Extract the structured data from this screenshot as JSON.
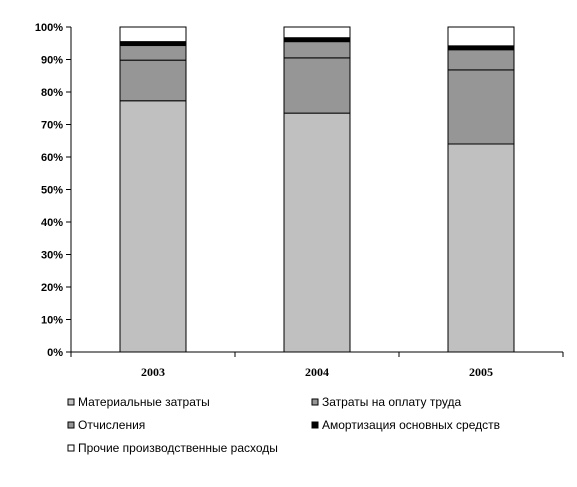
{
  "chart_data": {
    "type": "bar",
    "stacked": true,
    "percent_stacked": true,
    "categories": [
      "2003",
      "2004",
      "2005"
    ],
    "series": [
      {
        "name": "Материальные затраты",
        "color": "#c0c0c0",
        "values": [
          77.3,
          73.5,
          64.0
        ]
      },
      {
        "name": "Отчисления",
        "color": "#969696",
        "values": [
          12.5,
          17.0,
          22.8
        ]
      },
      {
        "name": "Затраты на оплату труда",
        "color": "#969696",
        "values": [
          4.5,
          5.0,
          6.2
        ]
      },
      {
        "name": "Амортизация основных средств",
        "color": "#000000",
        "values": [
          1.2,
          1.2,
          1.2
        ]
      },
      {
        "name": "Прочие производственные расходы",
        "color": "#ffffff",
        "values": [
          4.5,
          3.3,
          5.8
        ]
      }
    ],
    "ylim": [
      0,
      100
    ],
    "ytick_labels": [
      "0%",
      "10%",
      "20%",
      "30%",
      "40%",
      "50%",
      "60%",
      "70%",
      "80%",
      "90%",
      "100%"
    ],
    "ytick_values": [
      0,
      10,
      20,
      30,
      40,
      50,
      60,
      70,
      80,
      90,
      100
    ],
    "grid": false,
    "legend_position": "bottom",
    "legend_order": [
      "Материальные затраты",
      "Затраты на оплату труда",
      "Отчисления",
      "Амортизация основных средств",
      "Прочие производственные расходы"
    ],
    "title": "",
    "xlabel": "",
    "ylabel": ""
  }
}
